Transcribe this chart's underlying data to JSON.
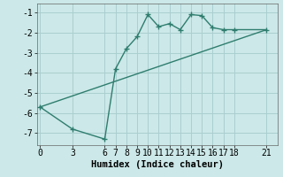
{
  "xlabel": "Humidex (Indice chaleur)",
  "ylabel": "",
  "bg_color": "#cce8e8",
  "line_color": "#2e7d6e",
  "grid_color": "#aacfcf",
  "x_ticks": [
    0,
    3,
    6,
    7,
    8,
    9,
    10,
    11,
    12,
    13,
    14,
    15,
    16,
    17,
    18,
    21
  ],
  "y_ticks": [
    -7,
    -6,
    -5,
    -4,
    -3,
    -2,
    -1
  ],
  "xlim": [
    -0.3,
    22
  ],
  "ylim": [
    -7.6,
    -0.55
  ],
  "curve_x": [
    0,
    3,
    6,
    7,
    8,
    9,
    10,
    11,
    12,
    13,
    14,
    15,
    16,
    17,
    18,
    21
  ],
  "curve_y": [
    -5.7,
    -6.8,
    -7.3,
    -3.8,
    -2.8,
    -2.2,
    -1.1,
    -1.7,
    -1.55,
    -1.85,
    -1.1,
    -1.15,
    -1.75,
    -1.85,
    -1.85,
    -1.85
  ],
  "line2_x": [
    0,
    21
  ],
  "line2_y": [
    -5.7,
    -1.85
  ],
  "marker_size": 2.5,
  "line_width": 1.0,
  "tick_fontsize": 7,
  "xlabel_fontsize": 7.5
}
